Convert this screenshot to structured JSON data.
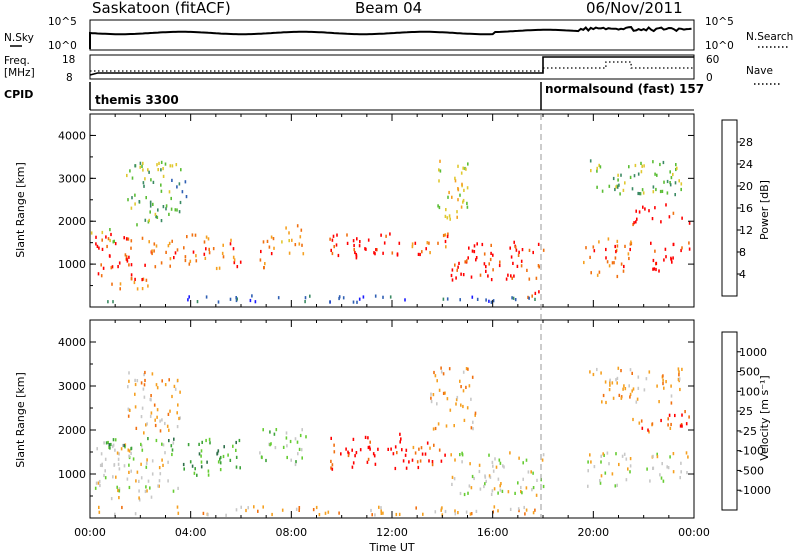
{
  "header": {
    "station": "Saskatoon (fitACF)",
    "beam": "Beam 04",
    "date": "06/Nov/2011"
  },
  "noise_panel": {
    "left_label": "N.Sky",
    "right_label": "N.Search",
    "left_ticks": [
      "10^5",
      "10^0"
    ],
    "right_ticks": [
      "10^5",
      "10^0"
    ]
  },
  "freq_panel": {
    "left_label_1": "Freq.",
    "left_label_2": "[MHz]",
    "right_label": "Nave",
    "left_ticks": [
      "18",
      "8"
    ],
    "right_ticks": [
      "60",
      "0"
    ]
  },
  "cpid_panel": {
    "label": "CPID",
    "program_1": "themis 3300",
    "program_2": "normalsound (fast)  157"
  },
  "colors": {
    "power_scale": [
      "#1a1aff",
      "#2f5fb3",
      "#3b8a63",
      "#5bbd35",
      "#e0c830",
      "#f5a020",
      "#f07010",
      "#ff0000"
    ],
    "velocity_scale": [
      "#1f4fcf",
      "#2e6f4a",
      "#3da33a",
      "#66cc33",
      "#c8c8c8",
      "#f5a020",
      "#f07010",
      "#ff0000"
    ]
  },
  "chart_data": [
    {
      "type": "heatmap",
      "panel": "power",
      "ylabel": "Slant Range [km]",
      "xlabel": "Time UT",
      "x_tick_labels": [
        "00:00",
        "04:00",
        "08:00",
        "12:00",
        "16:00",
        "20:00",
        "00:00"
      ],
      "y_tick_labels": [
        "1000",
        "2000",
        "3000",
        "4000"
      ],
      "ylim": [
        0,
        4500
      ],
      "xlim_hours": [
        0,
        24
      ],
      "colorbar": {
        "label": "Power [dB]",
        "ticks": [
          "28",
          "24",
          "20",
          "16",
          "12",
          "8",
          "4"
        ],
        "range": [
          0,
          32
        ]
      },
      "regions": [
        {
          "t": [
            0.1,
            2.2
          ],
          "r": [
            600,
            1700
          ],
          "c": 7
        },
        {
          "t": [
            2.2,
            3.5
          ],
          "r": [
            900,
            1600
          ],
          "c": 6
        },
        {
          "t": [
            0.8,
            2.6
          ],
          "r": [
            400,
            700
          ],
          "c": 6
        },
        {
          "t": [
            0.0,
            1.0
          ],
          "r": [
            1500,
            1800
          ],
          "c": 3
        },
        {
          "t": [
            1.4,
            3.6
          ],
          "r": [
            1900,
            3400
          ],
          "c": 3
        },
        {
          "t": [
            3.6,
            4.2
          ],
          "r": [
            900,
            1700
          ],
          "c": 6
        },
        {
          "t": [
            4.5,
            6.0
          ],
          "r": [
            850,
            1700
          ],
          "c": 6
        },
        {
          "t": [
            6.6,
            7.3
          ],
          "r": [
            900,
            1700
          ],
          "c": 6
        },
        {
          "t": [
            7.5,
            8.6
          ],
          "r": [
            1200,
            1900
          ],
          "c": 5
        },
        {
          "t": [
            9.5,
            12.6
          ],
          "r": [
            1100,
            1700
          ],
          "c": 7
        },
        {
          "t": [
            12.5,
            14.2
          ],
          "r": [
            1100,
            1700
          ],
          "c": 6
        },
        {
          "t": [
            13.8,
            15.0
          ],
          "r": [
            2000,
            3400
          ],
          "c": 4
        },
        {
          "t": [
            14.3,
            18.0
          ],
          "r": [
            600,
            1500
          ],
          "c": 7
        },
        {
          "t": [
            16.8,
            18.0
          ],
          "r": [
            200,
            400
          ],
          "c": 7
        },
        {
          "t": [
            0.3,
            18.0
          ],
          "r": [
            100,
            250
          ],
          "c": 1
        },
        {
          "t": [
            19.5,
            21.5
          ],
          "r": [
            700,
            1600
          ],
          "c": 6
        },
        {
          "t": [
            22.0,
            23.8
          ],
          "r": [
            800,
            1500
          ],
          "c": 7
        },
        {
          "t": [
            21.5,
            23.8
          ],
          "r": [
            1900,
            2400
          ],
          "c": 7
        },
        {
          "t": [
            19.8,
            23.5
          ],
          "r": [
            2600,
            3400
          ],
          "c": 3
        },
        {
          "t": [
            3.2,
            3.9
          ],
          "r": [
            2500,
            3000
          ],
          "c": 1
        },
        {
          "t": [
            5.8,
            6.1
          ],
          "r": [
            2400,
            2800
          ],
          "c": 1
        }
      ]
    },
    {
      "type": "heatmap",
      "panel": "velocity",
      "ylabel": "Slant Range [km]",
      "xlabel": "Time UT",
      "x_tick_labels": [
        "00:00",
        "04:00",
        "08:00",
        "12:00",
        "16:00",
        "20:00",
        "00:00"
      ],
      "y_tick_labels": [
        "1000",
        "2000",
        "3000",
        "4000"
      ],
      "ylim": [
        0,
        4500
      ],
      "xlim_hours": [
        0,
        24
      ],
      "colorbar": {
        "label": "Velocity [m s⁻¹]",
        "ticks": [
          "1000",
          "500",
          "100",
          "25",
          "-25",
          "-100",
          "-500",
          "-1000"
        ],
        "range": [
          -1200,
          1200
        ]
      },
      "regions": [
        {
          "t": [
            0.1,
            3.5
          ],
          "r": [
            600,
            1700
          ],
          "c": 4
        },
        {
          "t": [
            0.5,
            3.5
          ],
          "r": [
            1500,
            1800
          ],
          "c": 2
        },
        {
          "t": [
            0.8,
            2.6
          ],
          "r": [
            400,
            700
          ],
          "c": 4
        },
        {
          "t": [
            1.4,
            3.6
          ],
          "r": [
            1900,
            3300
          ],
          "c": 5
        },
        {
          "t": [
            3.6,
            6.0
          ],
          "r": [
            900,
            1800
          ],
          "c": 2
        },
        {
          "t": [
            6.6,
            8.6
          ],
          "r": [
            1200,
            2000
          ],
          "c": 3
        },
        {
          "t": [
            9.5,
            12.6
          ],
          "r": [
            1100,
            1900
          ],
          "c": 7
        },
        {
          "t": [
            12.5,
            14.2
          ],
          "r": [
            1100,
            1700
          ],
          "c": 6
        },
        {
          "t": [
            13.5,
            15.3
          ],
          "r": [
            2000,
            3400
          ],
          "c": 5
        },
        {
          "t": [
            14.3,
            18.0
          ],
          "r": [
            500,
            1500
          ],
          "c": 4
        },
        {
          "t": [
            0.3,
            18.0
          ],
          "r": [
            50,
            250
          ],
          "c": 5
        },
        {
          "t": [
            19.5,
            21.5
          ],
          "r": [
            700,
            1600
          ],
          "c": 4
        },
        {
          "t": [
            21.5,
            23.8
          ],
          "r": [
            1900,
            2500
          ],
          "c": 6
        },
        {
          "t": [
            22.0,
            23.8
          ],
          "r": [
            800,
            1500
          ],
          "c": 4
        },
        {
          "t": [
            19.8,
            23.5
          ],
          "r": [
            2600,
            3400
          ],
          "c": 5
        }
      ]
    }
  ]
}
